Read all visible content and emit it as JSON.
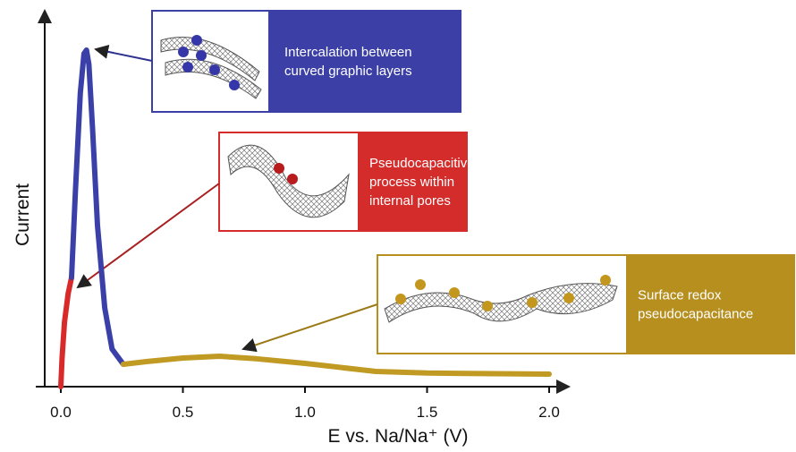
{
  "chart_data": {
    "type": "line",
    "xlabel": "E vs. Na/Na⁺ (V)",
    "ylabel": "Current",
    "xlim": [
      -0.1,
      2.15
    ],
    "ylim": [
      0,
      100
    ],
    "xticks": [
      {
        "value": 0,
        "label": "0.0"
      },
      0.5,
      {
        "value": 1,
        "label": "1.0"
      },
      1.5,
      {
        "value": 2,
        "label": "2.0"
      }
    ],
    "series": [
      {
        "color": "#d82a2a",
        "x": [
          0,
          0.005,
          0.015,
          0.03,
          0.044
        ],
        "values": [
          0,
          8,
          18,
          26,
          30.5
        ]
      },
      {
        "color": "#3a40a8",
        "x": [
          0.044,
          0.06,
          0.08,
          0.095,
          0.105,
          0.115,
          0.13,
          0.15,
          0.18,
          0.21,
          0.256
        ],
        "values": [
          30.5,
          55,
          82,
          93,
          94,
          90,
          72,
          45,
          22,
          10.5,
          6.25
        ]
      },
      {
        "color": "#c09a22",
        "x": [
          0.256,
          0.35,
          0.5,
          0.65,
          0.8,
          1.0,
          1.29,
          1.5,
          2.0
        ],
        "values": [
          6.25,
          7,
          8,
          8.5,
          7.8,
          6.5,
          4.25,
          3.8,
          3.5
        ]
      }
    ],
    "annotations": [
      {
        "lines": [
          "Intercalation between",
          "curved graphic layers"
        ],
        "color": "#3b3fa6"
      },
      {
        "lines": [
          "Pseudocapacitive",
          "process within",
          "internal pores"
        ],
        "color": "#d42b2b"
      },
      {
        "lines": [
          "Surface redox",
          "pseudocapacitance"
        ],
        "color": "#b68f1f"
      }
    ]
  }
}
